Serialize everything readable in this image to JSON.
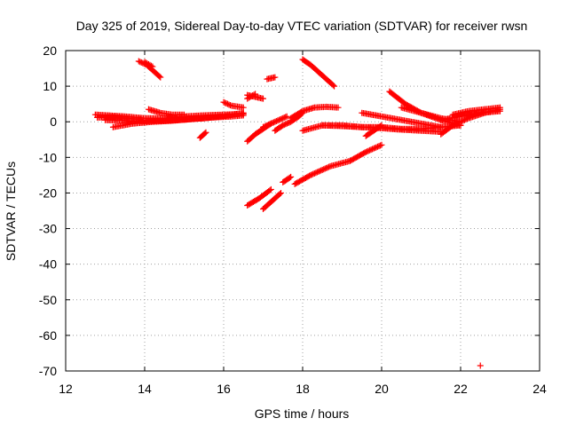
{
  "chart_data": {
    "type": "scatter",
    "title": "Day 325 of 2019, Sidereal Day-to-day VTEC variation (SDTVAR) for receiver rwsn",
    "xlabel": "GPS time / hours",
    "ylabel": "SDTVAR / TECUs",
    "xlim": [
      12,
      24
    ],
    "ylim": [
      -70,
      20
    ],
    "x_ticks": [
      12,
      14,
      16,
      18,
      20,
      22,
      24
    ],
    "y_ticks": [
      20,
      10,
      0,
      -10,
      -20,
      -30,
      -40,
      -50,
      -60,
      -70
    ],
    "grid": true,
    "marker": "plus",
    "color": "#ff0000",
    "tracks": [
      {
        "x": [
          12.75,
          13.5,
          14.0,
          14.5,
          15.0,
          15.5,
          16.0,
          16.5
        ],
        "y": [
          2.0,
          1.5,
          1.0,
          1.0,
          1.5,
          1.8,
          2.0,
          2.2
        ]
      },
      {
        "x": [
          12.8,
          13.2,
          13.6,
          13.9
        ],
        "y": [
          1.2,
          1.3,
          0.9,
          0.7
        ]
      },
      {
        "x": [
          13.2,
          13.7,
          14.2,
          14.7,
          15.2,
          15.7,
          16.2,
          16.5
        ],
        "y": [
          -1.5,
          -0.5,
          0.0,
          0.3,
          0.8,
          1.2,
          1.5,
          1.8
        ]
      },
      {
        "x": [
          13.0,
          13.5,
          14.0,
          14.5,
          15.0,
          15.5,
          16.0,
          16.5
        ],
        "y": [
          0.5,
          0.3,
          0.2,
          0.3,
          0.6,
          1.0,
          1.6,
          2.5
        ]
      },
      {
        "x": [
          14.1,
          14.4,
          14.7,
          15.0
        ],
        "y": [
          3.5,
          2.5,
          2.0,
          2.0
        ]
      },
      {
        "x": [
          13.85,
          14.05,
          14.25,
          14.4
        ],
        "y": [
          17.0,
          16.0,
          14.0,
          12.5
        ]
      },
      {
        "x": [
          14.0,
          14.2
        ],
        "y": [
          16.8,
          15.5
        ]
      },
      {
        "x": [
          15.4,
          15.55
        ],
        "y": [
          -4.5,
          -3.0
        ]
      },
      {
        "x": [
          16.0,
          16.2,
          16.5
        ],
        "y": [
          5.5,
          4.5,
          4.0
        ]
      },
      {
        "x": [
          16.6,
          16.8,
          17.0
        ],
        "y": [
          7.5,
          7.0,
          6.5
        ]
      },
      {
        "x": [
          16.6,
          16.8
        ],
        "y": [
          6.5,
          7.8
        ]
      },
      {
        "x": [
          17.1,
          17.3
        ],
        "y": [
          12.0,
          12.5
        ]
      },
      {
        "x": [
          16.6,
          16.8,
          17.0,
          17.2
        ],
        "y": [
          -5.5,
          -3.5,
          -2.0,
          -0.5
        ]
      },
      {
        "x": [
          17.3,
          17.5,
          17.7,
          17.9,
          18.0
        ],
        "y": [
          -2.5,
          -1.0,
          0.0,
          1.5,
          2.5
        ]
      },
      {
        "x": [
          17.0,
          17.3,
          17.6
        ],
        "y": [
          -1.5,
          0.0,
          1.5
        ]
      },
      {
        "x": [
          17.7,
          18.0,
          18.3,
          18.6,
          18.9
        ],
        "y": [
          1.0,
          3.0,
          4.0,
          4.2,
          4.0
        ]
      },
      {
        "x": [
          18.0,
          18.2,
          18.4,
          18.6,
          18.8
        ],
        "y": [
          17.5,
          16.0,
          14.0,
          12.0,
          10.0
        ]
      },
      {
        "x": [
          16.6,
          16.9,
          17.2
        ],
        "y": [
          -23.5,
          -21.5,
          -19.0
        ]
      },
      {
        "x": [
          17.0,
          17.2,
          17.45
        ],
        "y": [
          -24.5,
          -22.5,
          -20.0
        ]
      },
      {
        "x": [
          17.5,
          17.7
        ],
        "y": [
          -17.0,
          -15.5
        ]
      },
      {
        "x": [
          17.8,
          18.2,
          18.7,
          19.2,
          19.6,
          20.0
        ],
        "y": [
          -17.5,
          -15.0,
          -12.5,
          -11.0,
          -8.5,
          -6.5
        ]
      },
      {
        "x": [
          18.0,
          18.5,
          19.0,
          19.5,
          20.0,
          20.5,
          21.0,
          21.5,
          22.0
        ],
        "y": [
          -2.5,
          -1.0,
          -1.0,
          -1.5,
          -1.5,
          -2.0,
          -2.0,
          -1.5,
          -1.0
        ]
      },
      {
        "x": [
          18.5,
          19.0,
          19.5,
          20.0,
          20.5,
          21.0,
          21.5
        ],
        "y": [
          -1.0,
          -1.2,
          -1.5,
          -1.8,
          -2.2,
          -2.5,
          -2.8
        ]
      },
      {
        "x": [
          19.6,
          19.8,
          20.0
        ],
        "y": [
          -4.0,
          -2.5,
          -1.0
        ]
      },
      {
        "x": [
          19.5,
          20.0,
          20.5,
          21.0,
          21.5
        ],
        "y": [
          2.5,
          1.5,
          0.5,
          -0.5,
          -1.5
        ]
      },
      {
        "x": [
          20.2,
          20.6,
          21.0,
          21.5,
          22.0
        ],
        "y": [
          8.5,
          5.0,
          2.5,
          0.5,
          -1.0
        ]
      },
      {
        "x": [
          20.5,
          21.0,
          21.5,
          22.0
        ],
        "y": [
          4.0,
          2.5,
          1.0,
          0.0
        ]
      },
      {
        "x": [
          21.5,
          21.8,
          22.2,
          22.6,
          23.0
        ],
        "y": [
          -3.5,
          -1.0,
          1.0,
          2.5,
          3.5
        ]
      },
      {
        "x": [
          21.8,
          22.2,
          22.6,
          23.0
        ],
        "y": [
          2.0,
          3.0,
          3.5,
          4.0
        ]
      },
      {
        "x": [
          21.5,
          22.0,
          22.5,
          23.0
        ],
        "y": [
          0.5,
          1.5,
          2.5,
          3.0
        ]
      },
      {
        "x": [
          22.5
        ],
        "y": [
          -68.5
        ]
      }
    ]
  }
}
